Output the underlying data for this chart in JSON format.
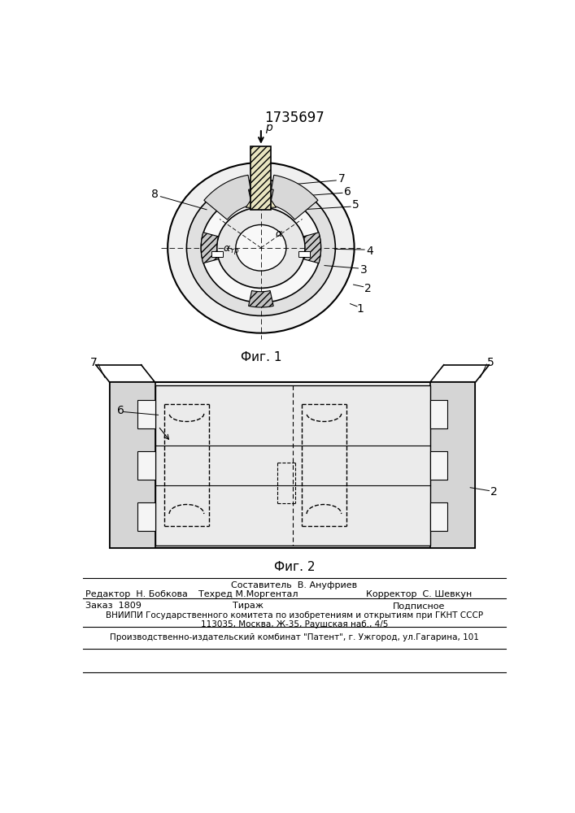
{
  "patent_number": "1735697",
  "bg_color": "#ffffff",
  "fig1_caption": "Фиг. 1",
  "fig2_caption": "Фиг. 2",
  "editor_line": "Редактор  Н. Бобкова",
  "composer_line1": "Составитель  В. Ануфриев",
  "composer_line2": "Техред М.Моргентал",
  "corrector_line": "Корректор  С. Шевкун",
  "order_line": "Заказ  1809",
  "tirazh_line": "Тираж",
  "podpisnoe_line": "Подписное",
  "vniipи_line": "ВНИИПИ Государственного комитета по изобретениям и открытиям при ГКНТ СССР",
  "address_line": "113035, Москва, Ж-35, Раушская наб., 4/5",
  "factory_line": "Производственно-издательский комбинат \"Патент\", г. Ужгород, ул.Гагарина, 101",
  "text_color": "#000000"
}
